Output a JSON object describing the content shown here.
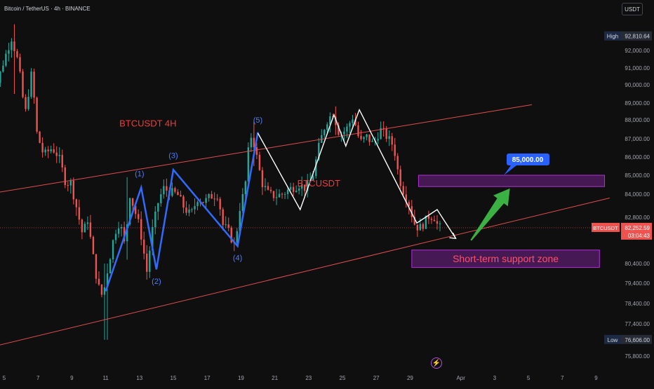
{
  "header": {
    "title": "Bitcoin / TetherUS · 4h · BINANCE",
    "currency": "USDT"
  },
  "colors": {
    "up": "#26a69a",
    "down": "#ef5350",
    "channel": "#e04e4e",
    "wave": "#2f6bff",
    "zigzag": "#ffffff",
    "zone": "#b22fd6",
    "arrow": "#3bb143",
    "background": "#0f0f0f"
  },
  "chart_data": {
    "type": "candlestick",
    "symbol": "BTCUSDT",
    "timeframe": "4h",
    "exchange": "BINANCE",
    "y_axis": {
      "ticks": [
        {
          "value": 92000,
          "label": "92,000.00"
        },
        {
          "value": 91000,
          "label": "91,000.00"
        },
        {
          "value": 90000,
          "label": "90,000.00"
        },
        {
          "value": 89000,
          "label": "89,000.00"
        },
        {
          "value": 88000,
          "label": "88,000.00"
        },
        {
          "value": 87000,
          "label": "87,000.00"
        },
        {
          "value": 86000,
          "label": "86,000.00"
        },
        {
          "value": 85000,
          "label": "85,000.00"
        },
        {
          "value": 84000,
          "label": "84,000.00"
        },
        {
          "value": 82800,
          "label": "82,800.00"
        },
        {
          "value": 80400,
          "label": "80,400.00"
        },
        {
          "value": 79400,
          "label": "79,400.00"
        },
        {
          "value": 78400,
          "label": "78,400.00"
        },
        {
          "value": 77400,
          "label": "77,400.00"
        },
        {
          "value": 75800,
          "label": "75,800.00"
        }
      ]
    },
    "x_axis": {
      "ticks": [
        {
          "day": 5,
          "label": "5"
        },
        {
          "day": 7,
          "label": "7"
        },
        {
          "day": 9,
          "label": "9"
        },
        {
          "day": 11,
          "label": "11"
        },
        {
          "day": 13,
          "label": "13"
        },
        {
          "day": 15,
          "label": "15"
        },
        {
          "day": 17,
          "label": "17"
        },
        {
          "day": 19,
          "label": "19"
        },
        {
          "day": 21,
          "label": "21"
        },
        {
          "day": 23,
          "label": "23"
        },
        {
          "day": 25,
          "label": "25"
        },
        {
          "day": 27,
          "label": "27"
        },
        {
          "day": 29,
          "label": "29"
        },
        {
          "day": 32,
          "label": "Apr"
        },
        {
          "day": 34,
          "label": "3"
        },
        {
          "day": 36,
          "label": "5"
        },
        {
          "day": 38,
          "label": "7"
        },
        {
          "day": 40,
          "label": "9"
        }
      ]
    },
    "high": {
      "tag": "High",
      "value": 92810.64,
      "label": "92,810.64"
    },
    "low": {
      "tag": "Low",
      "value": 76606.0,
      "label": "76,606.00"
    },
    "last": {
      "tag": "BTCUSDT",
      "value": 82252.59,
      "label": "82,252.59",
      "countdown": "03:04:43"
    },
    "price_path": [
      [
        4.1,
        87400
      ],
      [
        4.6,
        89600
      ],
      [
        5.2,
        91600
      ],
      [
        5.6,
        92700
      ],
      [
        6.0,
        91300
      ],
      [
        6.4,
        88300
      ],
      [
        6.8,
        90800
      ],
      [
        7.1,
        87300
      ],
      [
        7.5,
        86100
      ],
      [
        8.0,
        86500
      ],
      [
        8.4,
        86000
      ],
      [
        8.8,
        84600
      ],
      [
        9.1,
        84600
      ],
      [
        9.5,
        83100
      ],
      [
        9.8,
        81900
      ],
      [
        10.1,
        82700
      ],
      [
        10.4,
        80900
      ],
      [
        10.7,
        79300
      ],
      [
        11.0,
        78700
      ],
      [
        11.3,
        80200
      ],
      [
        11.7,
        82000
      ],
      [
        12.0,
        82600
      ],
      [
        12.3,
        81300
      ],
      [
        12.6,
        84000
      ],
      [
        12.9,
        83100
      ],
      [
        13.2,
        82200
      ],
      [
        13.6,
        80000
      ],
      [
        13.9,
        82000
      ],
      [
        14.3,
        83700
      ],
      [
        14.6,
        84300
      ],
      [
        15.0,
        84100
      ],
      [
        15.4,
        84000
      ],
      [
        15.8,
        83300
      ],
      [
        16.2,
        82900
      ],
      [
        16.6,
        83800
      ],
      [
        17.0,
        83600
      ],
      [
        17.4,
        83900
      ],
      [
        17.8,
        84000
      ],
      [
        18.1,
        82400
      ],
      [
        18.4,
        82100
      ],
      [
        18.8,
        81300
      ],
      [
        19.1,
        83300
      ],
      [
        19.4,
        84300
      ],
      [
        19.6,
        86300
      ],
      [
        19.8,
        87300
      ],
      [
        20.1,
        86000
      ],
      [
        20.4,
        84600
      ],
      [
        20.8,
        84000
      ],
      [
        21.2,
        83900
      ],
      [
        21.6,
        84000
      ],
      [
        22.1,
        84300
      ],
      [
        22.6,
        84500
      ],
      [
        23.0,
        84300
      ],
      [
        23.4,
        84900
      ],
      [
        23.8,
        86700
      ],
      [
        24.2,
        87900
      ],
      [
        24.6,
        88400
      ],
      [
        25.0,
        87200
      ],
      [
        25.4,
        87500
      ],
      [
        25.8,
        88200
      ],
      [
        26.2,
        86800
      ],
      [
        26.6,
        87100
      ],
      [
        27.0,
        86700
      ],
      [
        27.4,
        87500
      ],
      [
        27.8,
        87100
      ],
      [
        28.2,
        86600
      ],
      [
        28.5,
        84900
      ],
      [
        28.8,
        84100
      ],
      [
        29.1,
        83500
      ],
      [
        29.4,
        82500
      ],
      [
        29.7,
        82200
      ],
      [
        30.0,
        82500
      ],
      [
        30.3,
        82900
      ],
      [
        30.6,
        82800
      ],
      [
        30.85,
        82250
      ]
    ],
    "volatile_wicks": [
      {
        "day": 5.6,
        "low": 89500,
        "high": 93500
      },
      {
        "day": 11.0,
        "low": 76606,
        "high": 80400
      },
      {
        "day": 12.3,
        "low": 80600,
        "high": 84900
      },
      {
        "day": 19.8,
        "low": 85500,
        "high": 87900
      },
      {
        "day": 24.6,
        "low": 87200,
        "high": 88800
      }
    ],
    "channel": {
      "upper": {
        "from": [
          4.0,
          84000
        ],
        "to": [
          36.2,
          88900
        ]
      },
      "lower": {
        "from": [
          4.0,
          76200
        ],
        "to": [
          40.8,
          83800
        ]
      }
    },
    "wave_path": [
      [
        11.0,
        79000
      ],
      [
        13.1,
        84350
      ],
      [
        14.0,
        80100
      ],
      [
        15.0,
        85300
      ],
      [
        18.8,
        81300
      ],
      [
        20.0,
        87350
      ]
    ],
    "wave_labels": [
      {
        "label": "(1)",
        "day": 13.0,
        "price": 85100
      },
      {
        "label": "(2)",
        "day": 14.0,
        "price": 79500
      },
      {
        "label": "(3)",
        "day": 15.0,
        "price": 86100
      },
      {
        "label": "(4)",
        "day": 18.8,
        "price": 80700
      },
      {
        "label": "(5)",
        "day": 20.0,
        "price": 88000
      }
    ],
    "zigzag": [
      [
        20.0,
        87300
      ],
      [
        22.5,
        83200
      ],
      [
        24.5,
        88300
      ],
      [
        25.2,
        86600
      ],
      [
        26.0,
        88600
      ],
      [
        29.4,
        82500
      ],
      [
        30.6,
        83200
      ],
      [
        31.7,
        81700
      ]
    ],
    "zigzag_arrow": {
      "from": [
        31.2,
        82200
      ],
      "to": [
        31.7,
        81700
      ]
    },
    "resistance_zone": {
      "top": 85000,
      "bottom": 84400,
      "from_day": 29.5,
      "to_day": 40.5
    },
    "support_zone": {
      "label": "Short-term support zone",
      "top": 81100,
      "bottom": 80200,
      "from_day": 29.1,
      "to_day": 40.2
    },
    "target": {
      "label": "85,000.00",
      "price": 85000
    },
    "green_arrow": {
      "from": [
        32.6,
        81600
      ],
      "to": [
        34.9,
        84300
      ]
    },
    "annotations": [
      {
        "text": "BTCUSDT 4H",
        "day": 13.5,
        "price": 87650
      },
      {
        "text": "BTCUSDT",
        "day": 23.6,
        "price": 84400
      }
    ]
  }
}
